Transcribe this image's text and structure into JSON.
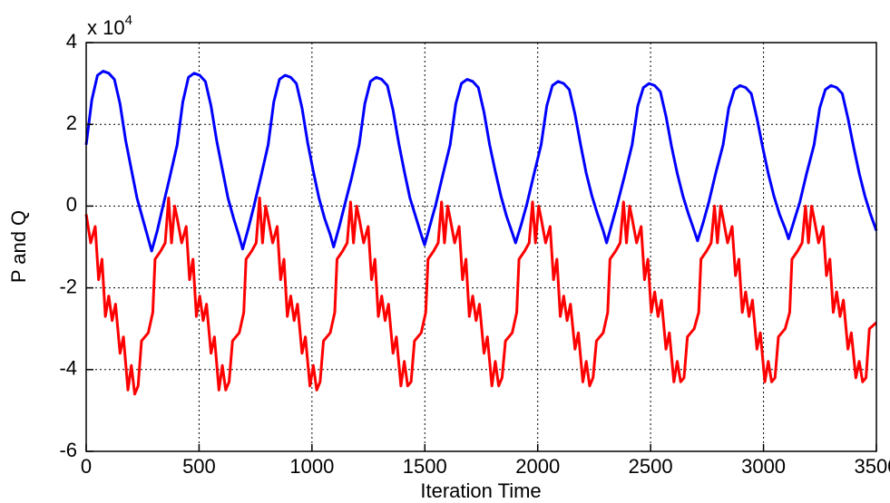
{
  "chart_data": {
    "type": "line",
    "y_label": "P and Q",
    "x_label": "Iteration Time",
    "y_multiplier": {
      "base": "x 10",
      "power": "4"
    },
    "xlim": [
      0,
      3500
    ],
    "xticks": [
      0,
      500,
      1000,
      1500,
      2000,
      2500,
      3000,
      3500
    ],
    "ylim": [
      -6,
      4
    ],
    "yticks": [
      -6,
      -4,
      -2,
      0,
      2,
      4
    ],
    "grid": true,
    "series": [
      {
        "color": "#0000ff",
        "x": [
          0,
          25,
          50,
          75,
          100,
          125,
          150,
          175,
          200,
          225,
          250,
          275,
          290,
          315,
          340,
          370,
          403,
          428,
          453,
          478,
          503,
          528,
          553,
          578,
          603,
          628,
          653,
          678,
          693,
          718,
          743,
          773,
          806,
          831,
          856,
          881,
          906,
          931,
          956,
          981,
          1006,
          1031,
          1056,
          1081,
          1096,
          1121,
          1146,
          1176,
          1209,
          1234,
          1259,
          1284,
          1309,
          1334,
          1359,
          1384,
          1409,
          1434,
          1459,
          1484,
          1499,
          1524,
          1549,
          1579,
          1612,
          1637,
          1662,
          1687,
          1712,
          1737,
          1762,
          1787,
          1812,
          1837,
          1862,
          1887,
          1902,
          1927,
          1952,
          1982,
          2015,
          2040,
          2065,
          2090,
          2115,
          2140,
          2165,
          2190,
          2215,
          2240,
          2265,
          2290,
          2305,
          2330,
          2355,
          2385,
          2418,
          2443,
          2468,
          2493,
          2518,
          2543,
          2568,
          2593,
          2618,
          2643,
          2668,
          2693,
          2708,
          2733,
          2758,
          2788,
          2821,
          2846,
          2871,
          2896,
          2921,
          2946,
          2971,
          2996,
          3021,
          3046,
          3071,
          3096,
          3111,
          3136,
          3161,
          3191,
          3224,
          3249,
          3274,
          3299,
          3324,
          3349,
          3374,
          3399,
          3424,
          3449,
          3474,
          3500
        ],
        "values": [
          1.5,
          2.6,
          3.2,
          3.3,
          3.25,
          3.1,
          2.5,
          1.6,
          0.9,
          0.2,
          -0.3,
          -0.8,
          -1.1,
          -0.6,
          0.0,
          0.7,
          1.5,
          2.55,
          3.15,
          3.25,
          3.2,
          3.05,
          2.45,
          1.6,
          0.9,
          0.2,
          -0.3,
          -0.75,
          -1.05,
          -0.55,
          0.0,
          0.7,
          1.5,
          2.55,
          3.1,
          3.2,
          3.15,
          3.0,
          2.4,
          1.55,
          0.85,
          0.2,
          -0.3,
          -0.7,
          -1.0,
          -0.5,
          0.05,
          0.7,
          1.5,
          2.5,
          3.05,
          3.15,
          3.1,
          2.95,
          2.35,
          1.55,
          0.85,
          0.2,
          -0.25,
          -0.7,
          -0.95,
          -0.45,
          0.05,
          0.75,
          1.5,
          2.5,
          3.0,
          3.1,
          3.05,
          2.9,
          2.3,
          1.5,
          0.85,
          0.25,
          -0.25,
          -0.65,
          -0.9,
          -0.45,
          0.05,
          0.75,
          1.5,
          2.45,
          2.95,
          3.05,
          3.0,
          2.85,
          2.25,
          1.5,
          0.8,
          0.25,
          -0.2,
          -0.6,
          -0.9,
          -0.4,
          0.1,
          0.75,
          1.5,
          2.45,
          2.9,
          3.0,
          2.95,
          2.8,
          2.2,
          1.45,
          0.8,
          0.25,
          -0.2,
          -0.6,
          -0.85,
          -0.4,
          0.1,
          0.8,
          1.5,
          2.4,
          2.85,
          2.95,
          2.9,
          2.75,
          2.15,
          1.45,
          0.8,
          0.25,
          -0.2,
          -0.55,
          -0.8,
          -0.35,
          0.1,
          0.8,
          1.5,
          2.4,
          2.85,
          2.95,
          2.9,
          2.75,
          2.15,
          1.45,
          0.8,
          0.25,
          -0.2,
          -0.6
        ]
      },
      {
        "color": "#ff0000",
        "x": [
          0,
          20,
          40,
          55,
          70,
          85,
          100,
          115,
          130,
          150,
          165,
          185,
          200,
          215,
          230,
          245,
          275,
          295,
          305,
          330,
          350,
          365,
          378,
          392,
          403,
          423,
          443,
          458,
          473,
          488,
          503,
          518,
          533,
          553,
          568,
          588,
          603,
          618,
          633,
          648,
          678,
          698,
          708,
          733,
          753,
          768,
          781,
          795,
          806,
          826,
          846,
          861,
          876,
          891,
          906,
          921,
          936,
          956,
          971,
          991,
          1006,
          1021,
          1036,
          1051,
          1081,
          1101,
          1111,
          1136,
          1156,
          1171,
          1184,
          1198,
          1209,
          1229,
          1249,
          1264,
          1279,
          1294,
          1309,
          1324,
          1339,
          1359,
          1374,
          1394,
          1409,
          1424,
          1439,
          1454,
          1484,
          1504,
          1514,
          1539,
          1559,
          1574,
          1587,
          1601,
          1612,
          1632,
          1652,
          1667,
          1682,
          1697,
          1712,
          1727,
          1742,
          1762,
          1777,
          1797,
          1812,
          1827,
          1842,
          1857,
          1887,
          1907,
          1917,
          1942,
          1962,
          1977,
          1990,
          2004,
          2015,
          2035,
          2055,
          2070,
          2085,
          2100,
          2115,
          2130,
          2145,
          2165,
          2180,
          2200,
          2215,
          2230,
          2245,
          2260,
          2290,
          2310,
          2320,
          2345,
          2365,
          2380,
          2393,
          2407,
          2418,
          2438,
          2458,
          2473,
          2488,
          2503,
          2518,
          2533,
          2548,
          2568,
          2583,
          2603,
          2618,
          2633,
          2648,
          2663,
          2693,
          2713,
          2723,
          2748,
          2768,
          2783,
          2796,
          2810,
          2821,
          2841,
          2861,
          2876,
          2891,
          2906,
          2921,
          2936,
          2951,
          2971,
          2986,
          3006,
          3021,
          3036,
          3051,
          3066,
          3096,
          3116,
          3126,
          3151,
          3171,
          3186,
          3199,
          3213,
          3224,
          3244,
          3264,
          3279,
          3294,
          3309,
          3324,
          3339,
          3354,
          3374,
          3389,
          3409,
          3424,
          3439,
          3454,
          3469,
          3500
        ],
        "values": [
          -0.2,
          -0.9,
          -0.5,
          -1.8,
          -1.3,
          -2.7,
          -2.2,
          -2.8,
          -2.4,
          -3.6,
          -3.2,
          -4.5,
          -3.9,
          -4.6,
          -4.4,
          -3.3,
          -3.1,
          -2.6,
          -1.3,
          -1.1,
          -0.9,
          0.2,
          -0.9,
          0.0,
          -0.3,
          -0.9,
          -0.5,
          -1.8,
          -1.3,
          -2.7,
          -2.2,
          -2.8,
          -2.4,
          -3.6,
          -3.2,
          -4.5,
          -3.9,
          -4.5,
          -4.3,
          -3.3,
          -3.1,
          -2.6,
          -1.3,
          -1.1,
          -0.9,
          0.2,
          -0.9,
          0.0,
          -0.3,
          -0.9,
          -0.5,
          -1.8,
          -1.3,
          -2.7,
          -2.2,
          -2.8,
          -2.4,
          -3.6,
          -3.2,
          -4.4,
          -3.9,
          -4.5,
          -4.3,
          -3.3,
          -3.1,
          -2.6,
          -1.3,
          -1.1,
          -0.9,
          0.1,
          -0.9,
          0.0,
          -0.3,
          -0.9,
          -0.5,
          -1.8,
          -1.3,
          -2.7,
          -2.2,
          -2.8,
          -2.4,
          -3.6,
          -3.2,
          -4.4,
          -3.8,
          -4.4,
          -4.3,
          -3.3,
          -3.1,
          -2.6,
          -1.3,
          -1.1,
          -0.9,
          0.1,
          -0.9,
          0.0,
          -0.3,
          -0.9,
          -0.5,
          -1.8,
          -1.3,
          -2.7,
          -2.2,
          -2.8,
          -2.4,
          -3.6,
          -3.2,
          -4.4,
          -3.8,
          -4.4,
          -4.2,
          -3.3,
          -3.1,
          -2.6,
          -1.3,
          -1.1,
          -0.9,
          0.1,
          -0.9,
          0.0,
          -0.3,
          -0.9,
          -0.5,
          -1.8,
          -1.3,
          -2.7,
          -2.2,
          -2.8,
          -2.4,
          -3.5,
          -3.1,
          -4.3,
          -3.8,
          -4.4,
          -4.2,
          -3.3,
          -3.1,
          -2.6,
          -1.3,
          -1.1,
          -0.9,
          0.1,
          -0.9,
          0.0,
          -0.3,
          -0.9,
          -0.5,
          -1.8,
          -1.3,
          -2.6,
          -2.1,
          -2.7,
          -2.3,
          -3.5,
          -3.1,
          -4.3,
          -3.8,
          -4.3,
          -4.2,
          -3.2,
          -3.0,
          -2.6,
          -1.3,
          -1.1,
          -0.9,
          0.0,
          -0.9,
          0.0,
          -0.3,
          -0.9,
          -0.5,
          -1.7,
          -1.3,
          -2.6,
          -2.1,
          -2.7,
          -2.3,
          -3.5,
          -3.1,
          -4.3,
          -3.8,
          -4.3,
          -4.2,
          -3.2,
          -3.0,
          -2.6,
          -1.3,
          -1.1,
          -0.9,
          0.0,
          -0.9,
          0.0,
          -0.3,
          -0.9,
          -0.5,
          -1.7,
          -1.3,
          -2.6,
          -2.1,
          -2.7,
          -2.3,
          -3.5,
          -3.1,
          -4.2,
          -3.8,
          -4.3,
          -4.2,
          -3.0,
          -2.85
        ]
      }
    ]
  }
}
